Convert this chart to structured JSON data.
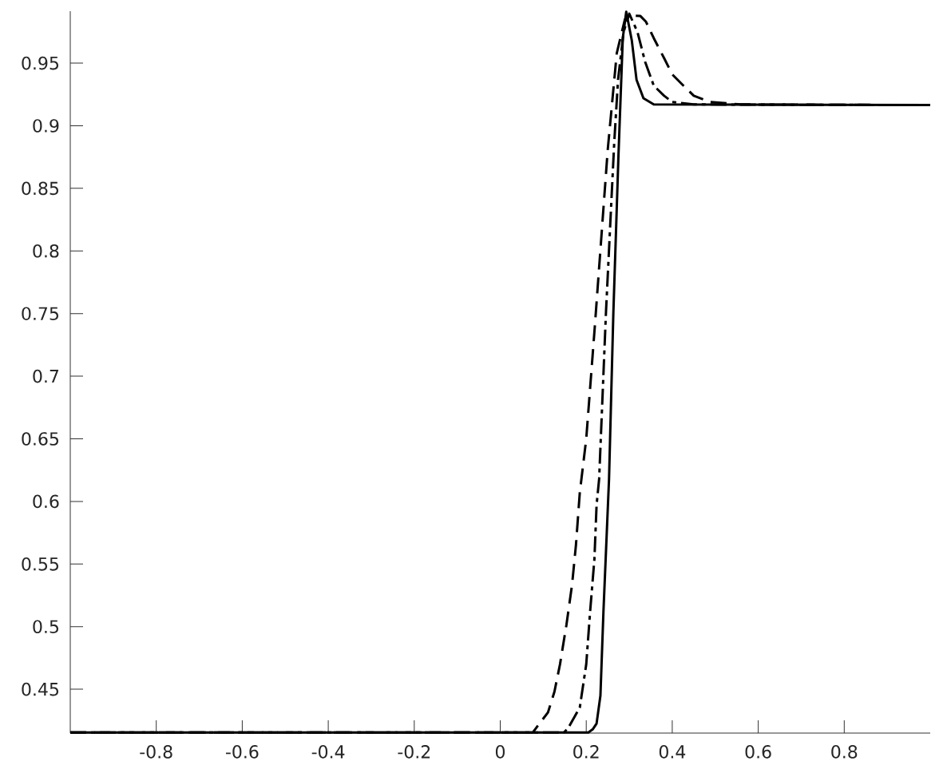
{
  "chart_data": {
    "type": "line",
    "xlim": [
      -1,
      1
    ],
    "ylim": [
      0.415,
      0.9915
    ],
    "xticks": [
      -0.8,
      -0.6,
      -0.4,
      -0.2,
      0,
      0.2,
      0.4,
      0.6,
      0.8
    ],
    "yticks": [
      0.45,
      0.5,
      0.55,
      0.6,
      0.65,
      0.7,
      0.75,
      0.8,
      0.85,
      0.9,
      0.95
    ],
    "grid": false,
    "marker": "none",
    "series": [
      {
        "color": "#000000",
        "line_style": "dashed",
        "x": [
          -1,
          0.076,
          0.08,
          0.111,
          0.126,
          0.139,
          0.154,
          0.167,
          0.176,
          0.185,
          0.2,
          0.22,
          0.25,
          0.271,
          0.29,
          0.31,
          0.326,
          0.339,
          0.357,
          0.381,
          0.4,
          0.426,
          0.45,
          0.487,
          0.56,
          1
        ],
        "values": [
          0.4155,
          0.4155,
          0.4175,
          0.4315,
          0.448,
          0.47,
          0.5016,
          0.5335,
          0.565,
          0.607,
          0.65,
          0.74,
          0.881,
          0.958,
          0.985,
          0.988,
          0.9876,
          0.983,
          0.97,
          0.954,
          0.941,
          0.932,
          0.924,
          0.919,
          0.917,
          0.9165
        ]
      },
      {
        "color": "#000000",
        "line_style": "dashdot",
        "x": [
          -1,
          0.148,
          0.158,
          0.185,
          0.2,
          0.209,
          0.219,
          0.224,
          0.23,
          0.246,
          0.265,
          0.274,
          0.287,
          0.3,
          0.319,
          0.337,
          0.357,
          0.381,
          0.4,
          0.45,
          1
        ],
        "values": [
          0.4155,
          0.4155,
          0.419,
          0.4354,
          0.47,
          0.512,
          0.554,
          0.597,
          0.618,
          0.752,
          0.886,
          0.937,
          0.975,
          0.9895,
          0.975,
          0.951,
          0.932,
          0.924,
          0.919,
          0.917,
          0.9165
        ]
      },
      {
        "color": "#000000",
        "line_style": "solid",
        "x": [
          -1,
          0.205,
          0.215,
          0.224,
          0.233,
          0.24,
          0.253,
          0.263,
          0.275,
          0.285,
          0.293,
          0.306,
          0.317,
          0.333,
          0.357,
          1
        ],
        "values": [
          0.4155,
          0.4155,
          0.418,
          0.4226,
          0.445,
          0.512,
          0.618,
          0.75,
          0.877,
          0.97,
          0.991,
          0.968,
          0.9366,
          0.922,
          0.917,
          0.9165
        ]
      }
    ]
  }
}
